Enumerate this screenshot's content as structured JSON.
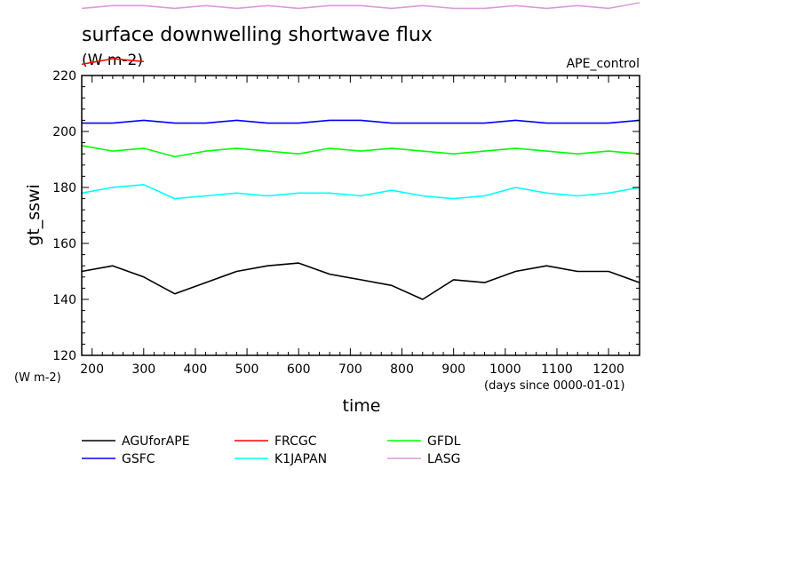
{
  "chart_data": {
    "type": "line",
    "title": "surface downwelling shortwave flux",
    "subtitle": "(W m-2)",
    "experiment": "APE_control",
    "xlabel": "time",
    "xunit": "(days since 0000-01-01)",
    "ylabel": "gt_sswi",
    "yunit": "(W m-2)",
    "xlim": [
      180,
      1260
    ],
    "ylim": [
      120,
      220
    ],
    "x_ticks": [
      "200",
      "300",
      "400",
      "500",
      "600",
      "700",
      "800",
      "900",
      "1000",
      "1100",
      "1200"
    ],
    "y_ticks": [
      "120",
      "140",
      "160",
      "180",
      "200",
      "220"
    ],
    "grid": false,
    "legend_position": "bottom",
    "x": [
      180,
      240,
      300,
      360,
      420,
      480,
      540,
      600,
      660,
      720,
      780,
      840,
      900,
      960,
      1020,
      1080,
      1140,
      1200,
      1260
    ],
    "series": [
      {
        "name": "AGUforAPE",
        "color": "#000000",
        "values": [
          150,
          152,
          148,
          142,
          146,
          150,
          152,
          153,
          149,
          147,
          145,
          140,
          147,
          146,
          150,
          152,
          150,
          150,
          146
        ]
      },
      {
        "name": "FRCGC",
        "color": "#ff0000",
        "values": [
          224,
          226,
          225,
          null,
          null,
          null,
          null,
          null,
          null,
          null,
          null,
          null,
          null,
          null,
          null,
          null,
          null,
          null,
          null
        ]
      },
      {
        "name": "GFDL",
        "color": "#00ff00",
        "values": [
          195,
          193,
          194,
          191,
          193,
          194,
          193,
          192,
          194,
          193,
          194,
          193,
          192,
          193,
          194,
          193,
          192,
          193,
          192
        ]
      },
      {
        "name": "GSFC",
        "color": "#0000ff",
        "values": [
          203,
          203,
          204,
          203,
          203,
          204,
          203,
          203,
          204,
          204,
          203,
          203,
          203,
          203,
          204,
          203,
          203,
          203,
          204
        ]
      },
      {
        "name": "K1JAPAN",
        "color": "#00ffff",
        "values": [
          178,
          180,
          181,
          176,
          177,
          178,
          177,
          178,
          178,
          177,
          179,
          177,
          176,
          177,
          180,
          178,
          177,
          178,
          180
        ]
      },
      {
        "name": "LASG",
        "color": "#dd99dd",
        "values": [
          244,
          245,
          245,
          244,
          245,
          244,
          245,
          244,
          245,
          245,
          244,
          245,
          244,
          244,
          245,
          244,
          245,
          244,
          246
        ]
      }
    ]
  }
}
